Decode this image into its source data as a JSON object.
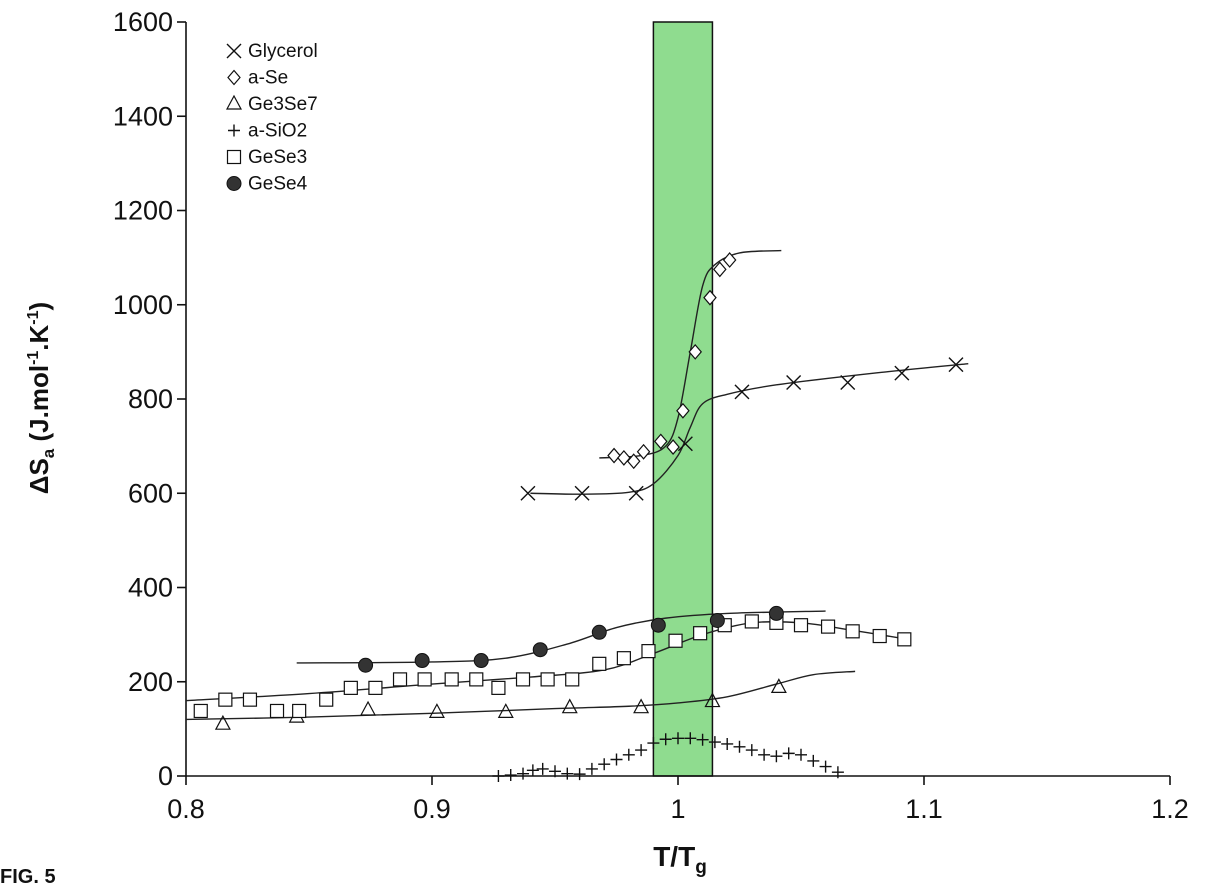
{
  "chart_data": {
    "type": "scatter",
    "title": "",
    "xlabel": "T/T",
    "xlabel_sub": "g",
    "ylabel": "ΔS",
    "ylabel_sub": "a",
    "ylabel_units": " (J.mol",
    "ylabel_sup1": "-1",
    "ylabel_mid": ".K",
    "ylabel_sup2": "-1",
    "ylabel_end": ")",
    "xlim": [
      0.8,
      1.2
    ],
    "ylim": [
      0,
      1600
    ],
    "x_ticks": [
      0.8,
      0.9,
      1.0,
      1.1,
      1.2
    ],
    "x_tick_labels": [
      "0.8",
      "0.9",
      "1",
      "1.1",
      "1.2"
    ],
    "y_ticks": [
      0,
      200,
      400,
      600,
      800,
      1000,
      1200,
      1400,
      1600
    ],
    "y_tick_labels": [
      "0",
      "200",
      "400",
      "600",
      "800",
      "1000",
      "1200",
      "1400",
      "1600"
    ],
    "grid": false,
    "legend_position": "top-left",
    "highlight_band": {
      "x": [
        0.99,
        1.014
      ],
      "color": "#8fdc8f"
    },
    "series": [
      {
        "name": "Glycerol",
        "marker": "x",
        "symbol": "×",
        "x": [
          0.939,
          0.961,
          0.983,
          1.003,
          1.026,
          1.047,
          1.069,
          1.091,
          1.113
        ],
        "y": [
          600,
          600,
          600,
          705,
          815,
          835,
          835,
          855,
          873
        ],
        "fit": {
          "x": [
            0.94,
            0.96,
            0.98,
            0.99,
            1.0,
            1.005,
            1.01,
            1.02,
            1.04,
            1.08,
            1.118
          ],
          "y": [
            600,
            598,
            602,
            620,
            680,
            740,
            790,
            810,
            830,
            855,
            875
          ]
        }
      },
      {
        "name": "a-Se",
        "marker": "diamond",
        "symbol": "◇",
        "x": [
          0.974,
          0.978,
          0.982,
          0.986,
          0.993,
          0.998,
          1.002,
          1.007,
          1.013,
          1.017,
          1.021
        ],
        "y": [
          680,
          675,
          668,
          688,
          710,
          698,
          775,
          900,
          1015,
          1075,
          1095
        ],
        "fit": {
          "x": [
            0.968,
            0.985,
            0.995,
            1.0,
            1.005,
            1.01,
            1.015,
            1.025,
            1.042
          ],
          "y": [
            675,
            680,
            700,
            760,
            900,
            1040,
            1085,
            1110,
            1115
          ]
        }
      },
      {
        "name": "Ge3Se7",
        "marker": "triangle",
        "symbol": "△",
        "x": [
          0.815,
          0.845,
          0.874,
          0.902,
          0.93,
          0.956,
          0.985,
          1.014,
          1.041
        ],
        "y": [
          110,
          125,
          140,
          135,
          135,
          145,
          145,
          158,
          188
        ],
        "fit": {
          "x": [
            0.8,
            0.85,
            0.9,
            0.95,
            0.98,
            1.0,
            1.02,
            1.04,
            1.055,
            1.072
          ],
          "y": [
            120,
            125,
            133,
            143,
            148,
            155,
            168,
            195,
            215,
            222
          ]
        }
      },
      {
        "name": "a-SiO2",
        "marker": "plus",
        "symbol": "+",
        "x": [
          0.927,
          0.932,
          0.937,
          0.941,
          0.945,
          0.95,
          0.955,
          0.96,
          0.965,
          0.97,
          0.975,
          0.98,
          0.985,
          0.99,
          0.995,
          1.0,
          1.005,
          1.01,
          1.015,
          1.02,
          1.025,
          1.03,
          1.035,
          1.04,
          1.045,
          1.05,
          1.055,
          1.06,
          1.065
        ],
        "y": [
          0,
          2,
          5,
          12,
          15,
          10,
          5,
          4,
          15,
          25,
          35,
          45,
          55,
          70,
          78,
          80,
          80,
          77,
          72,
          68,
          62,
          55,
          45,
          42,
          48,
          45,
          32,
          20,
          8
        ],
        "fit": null
      },
      {
        "name": "GeSe3",
        "marker": "square",
        "symbol": "□",
        "x": [
          0.806,
          0.816,
          0.826,
          0.837,
          0.846,
          0.857,
          0.867,
          0.877,
          0.887,
          0.897,
          0.908,
          0.918,
          0.927,
          0.937,
          0.947,
          0.957,
          0.968,
          0.978,
          0.988,
          0.999,
          1.009,
          1.019,
          1.03,
          1.04,
          1.05,
          1.061,
          1.071,
          1.082,
          1.092
        ],
        "y": [
          138,
          162,
          162,
          138,
          138,
          162,
          187,
          187,
          205,
          205,
          205,
          205,
          187,
          205,
          205,
          205,
          238,
          250,
          265,
          287,
          303,
          320,
          328,
          325,
          320,
          317,
          307,
          297,
          290
        ],
        "fit": {
          "x": [
            0.8,
            0.85,
            0.9,
            0.94,
            0.97,
            0.99,
            1.01,
            1.03,
            1.05,
            1.07,
            1.09
          ],
          "y": [
            160,
            175,
            195,
            210,
            225,
            260,
            300,
            325,
            325,
            310,
            293
          ]
        }
      },
      {
        "name": "GeSe4",
        "marker": "filled-circle",
        "symbol": "●",
        "x": [
          0.873,
          0.896,
          0.92,
          0.944,
          0.968,
          0.992,
          1.016,
          1.04
        ],
        "y": [
          235,
          245,
          245,
          268,
          305,
          320,
          330,
          345
        ],
        "fit": {
          "x": [
            0.845,
            0.9,
            0.93,
            0.955,
            0.975,
            0.995,
            1.02,
            1.06
          ],
          "y": [
            240,
            242,
            250,
            280,
            315,
            335,
            345,
            350
          ]
        }
      }
    ]
  },
  "caption": "FIG. 5"
}
